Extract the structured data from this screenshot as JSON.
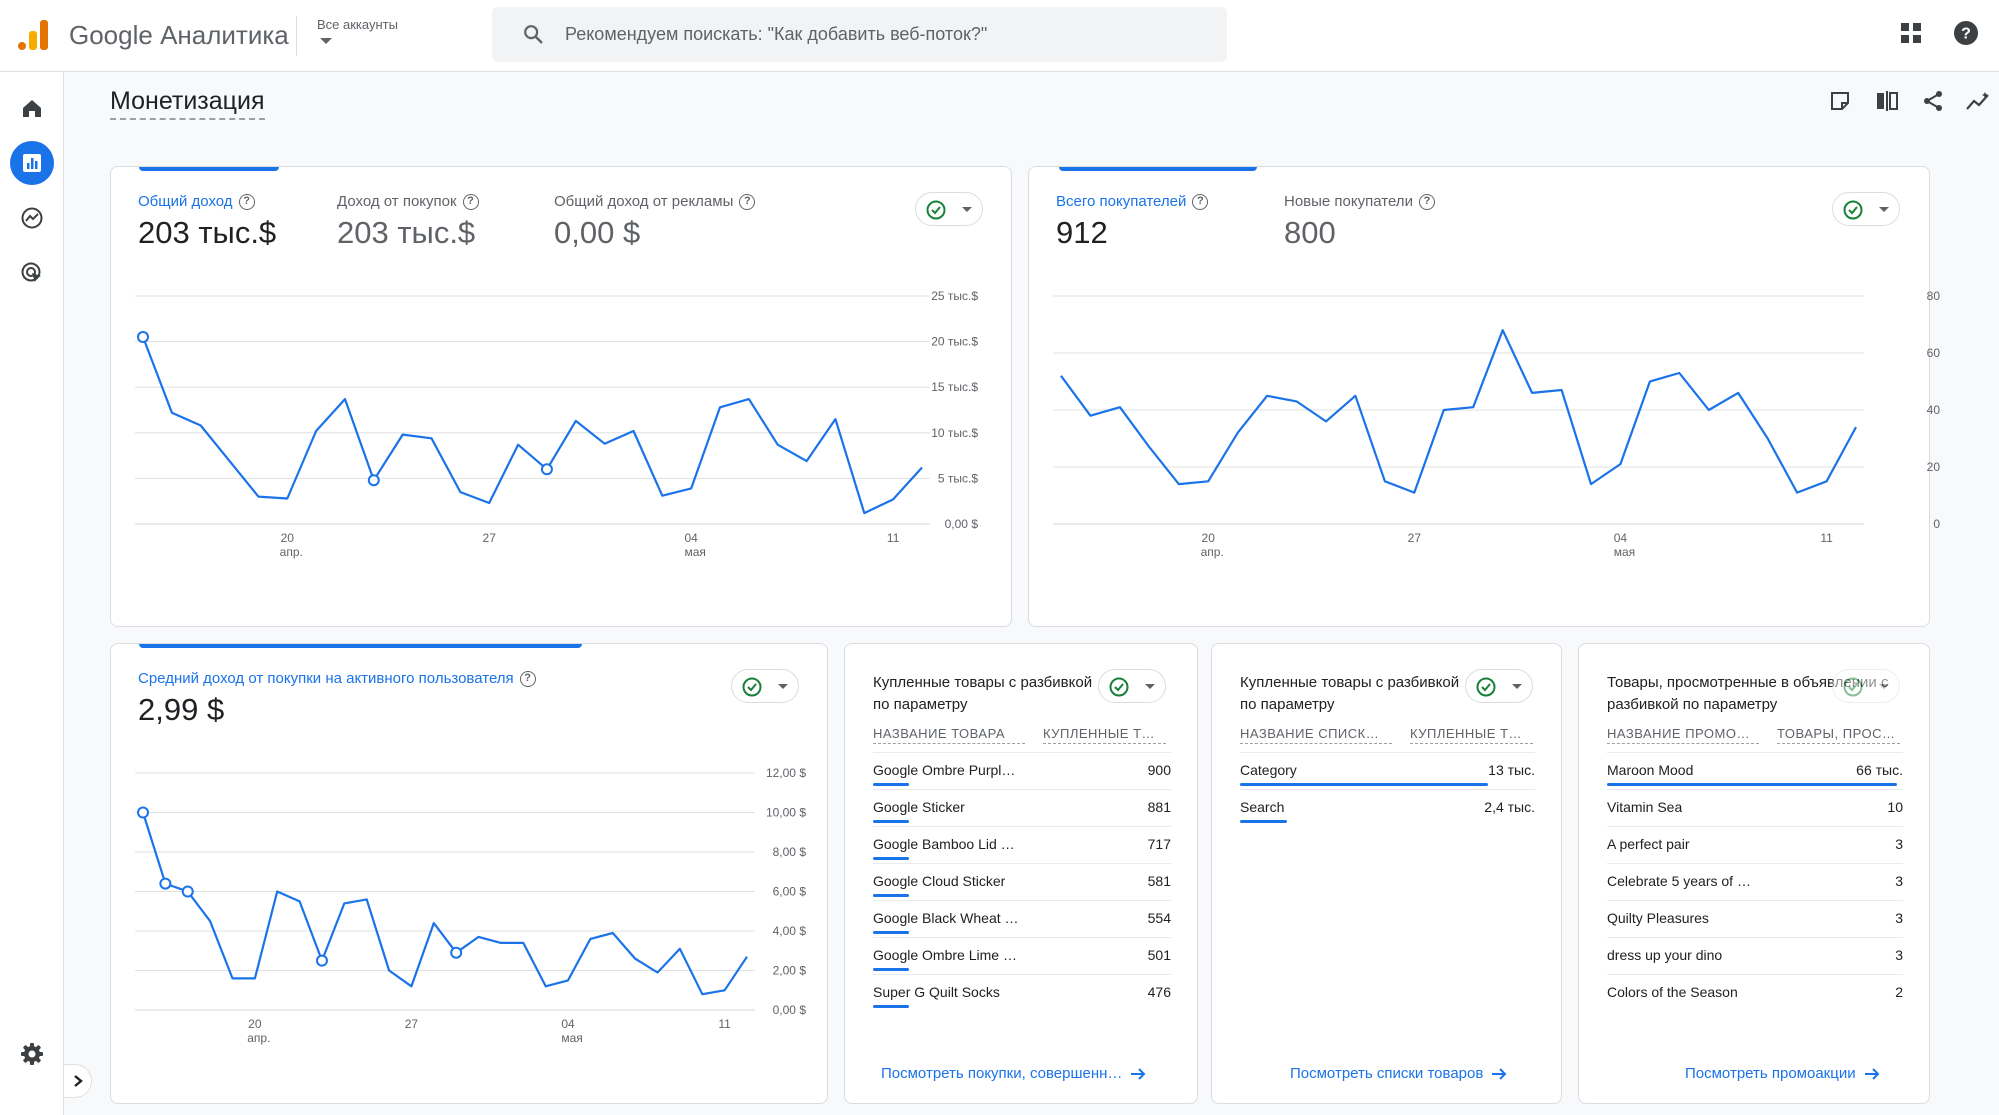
{
  "app": {
    "brand": "Google Аналитика",
    "accounts_label": "Все аккаунты",
    "search_placeholder": "Рекомендуем поискать: \"Как добавить веб-поток?\""
  },
  "page": {
    "title": "Монетизация"
  },
  "nav": {
    "items": [
      "home-icon",
      "reports-icon",
      "explore-icon",
      "advertising-icon"
    ],
    "active": "reports-icon",
    "bottom": "settings-icon"
  },
  "colors": {
    "accent": "#1a73e8",
    "ok": "#188038",
    "grid": "#e0e0e0"
  },
  "card1": {
    "metrics": [
      {
        "label": "Общий доход",
        "value": "203 тыс.$",
        "active": true
      },
      {
        "label": "Доход от покупок",
        "value": "203 тыс.$",
        "active": false
      },
      {
        "label": "Общий доход от рекламы",
        "value": "0,00 $",
        "active": false
      }
    ]
  },
  "card2": {
    "metrics": [
      {
        "label": "Всего покупателей",
        "value": "912",
        "active": true
      },
      {
        "label": "Новые покупатели",
        "value": "800",
        "active": false
      }
    ]
  },
  "card3": {
    "metrics": [
      {
        "label": "Средний доход от покупки на активного пользователя",
        "value": "2,99 $",
        "active": true
      }
    ]
  },
  "table_cards": [
    {
      "title": "Купленные товары с разбивкой по параметру",
      "col1": "НАЗВАНИЕ ТОВАРА",
      "col2": "КУПЛЕННЫЕ Т…",
      "rows": [
        {
          "name": "Google Ombre Purpl…",
          "value": "900",
          "share": 0.12
        },
        {
          "name": "Google Sticker",
          "value": "881",
          "share": 0.1
        },
        {
          "name": "Google Bamboo Lid …",
          "value": "717",
          "share": 0.07
        },
        {
          "name": "Google Cloud Sticker",
          "value": "581",
          "share": 0.06
        },
        {
          "name": "Google Black Wheat …",
          "value": "554",
          "share": 0.06
        },
        {
          "name": "Google Ombre Lime …",
          "value": "501",
          "share": 0.05
        },
        {
          "name": "Super G Quilt Socks",
          "value": "476",
          "share": 0.05
        }
      ],
      "link": "Посмотреть покупки, совершенн…"
    },
    {
      "title": "Купленные товары с разбивкой по параметру",
      "col1": "НАЗВАНИЕ СПИСК…",
      "col2": "КУПЛЕННЫЕ Т…",
      "rows": [
        {
          "name": "Category",
          "value": "13 тыс.",
          "share": 0.84
        },
        {
          "name": "Search",
          "value": "2,4 тыс.",
          "share": 0.16
        }
      ],
      "link": "Посмотреть списки товаров"
    },
    {
      "title": "Товары, просмотренные в объявлении с разбивкой по параметру",
      "col1": "НАЗВАНИЕ ПРОМО…",
      "col2": "ТОВАРЫ, ПРОС…",
      "rows": [
        {
          "name": "Maroon Mood",
          "value": "66 тыс.",
          "share": 0.98
        },
        {
          "name": "Vitamin Sea",
          "value": "10",
          "share": 0
        },
        {
          "name": "A perfect pair",
          "value": "3",
          "share": 0
        },
        {
          "name": "Celebrate 5 years of …",
          "value": "3",
          "share": 0
        },
        {
          "name": "Quilty Pleasures",
          "value": "3",
          "share": 0
        },
        {
          "name": "dress up your dino",
          "value": "3",
          "share": 0
        },
        {
          "name": "Colors of the Season",
          "value": "2",
          "share": 0
        }
      ],
      "link": "Посмотреть промоакции"
    }
  ],
  "chart_data": [
    {
      "type": "line",
      "series": [
        {
          "values": [
            20.5,
            12.2,
            10.8,
            6.9,
            3,
            2.8,
            10.2,
            13.7,
            4.8,
            9.8,
            9.4,
            3.5,
            2.3,
            8.7,
            6,
            11.3,
            8.8,
            10.2,
            3.1,
            3.9,
            12.8,
            13.7,
            8.7,
            6.9,
            11.5,
            1.2,
            2.7,
            6.2
          ]
        }
      ],
      "y_ticks": [
        "0,00 $",
        "5 тыс.$",
        "10 тыс.$",
        "15 тыс.$",
        "20 тыс.$",
        "25 тыс.$"
      ],
      "ylim": [
        0,
        25
      ],
      "x_ticks": [
        {
          "index": 5,
          "day": "20",
          "month": "апр."
        },
        {
          "index": 12,
          "day": "27",
          "month": ""
        },
        {
          "index": 19,
          "day": "04",
          "month": "мая"
        },
        {
          "index": 26,
          "day": "11",
          "month": ""
        }
      ],
      "markers": [
        0,
        8,
        14
      ]
    },
    {
      "type": "line",
      "series": [
        {
          "values": [
            52,
            38,
            41,
            27,
            14,
            15,
            32,
            45,
            43,
            36,
            45,
            15,
            11,
            40,
            41,
            68,
            46,
            47,
            14,
            21,
            50,
            53,
            40,
            46,
            30,
            11,
            15,
            34
          ]
        }
      ],
      "y_ticks": [
        "0",
        "20",
        "40",
        "60",
        "80"
      ],
      "ylim": [
        0,
        80
      ],
      "x_ticks": [
        {
          "index": 5,
          "day": "20",
          "month": "апр."
        },
        {
          "index": 12,
          "day": "27",
          "month": ""
        },
        {
          "index": 19,
          "day": "04",
          "month": "мая"
        },
        {
          "index": 26,
          "day": "11",
          "month": ""
        }
      ],
      "markers": []
    },
    {
      "type": "line",
      "series": [
        {
          "values": [
            10,
            6.4,
            6,
            4.5,
            1.6,
            1.6,
            6,
            5.5,
            2.5,
            5.4,
            5.6,
            2,
            1.2,
            4.4,
            2.9,
            3.7,
            3.4,
            3.4,
            1.2,
            1.5,
            3.6,
            3.9,
            2.6,
            1.9,
            3.1,
            0.8,
            1,
            2.7
          ]
        }
      ],
      "y_ticks": [
        "0,00 $",
        "2,00 $",
        "4,00 $",
        "6,00 $",
        "8,00 $",
        "10,00 $",
        "12,00 $"
      ],
      "ylim": [
        0,
        12
      ],
      "x_ticks": [
        {
          "index": 5,
          "day": "20",
          "month": "апр."
        },
        {
          "index": 12,
          "day": "27",
          "month": ""
        },
        {
          "index": 19,
          "day": "04",
          "month": "мая"
        },
        {
          "index": 26,
          "day": "11",
          "month": ""
        }
      ],
      "markers": [
        0,
        1,
        2,
        8,
        14
      ]
    }
  ]
}
